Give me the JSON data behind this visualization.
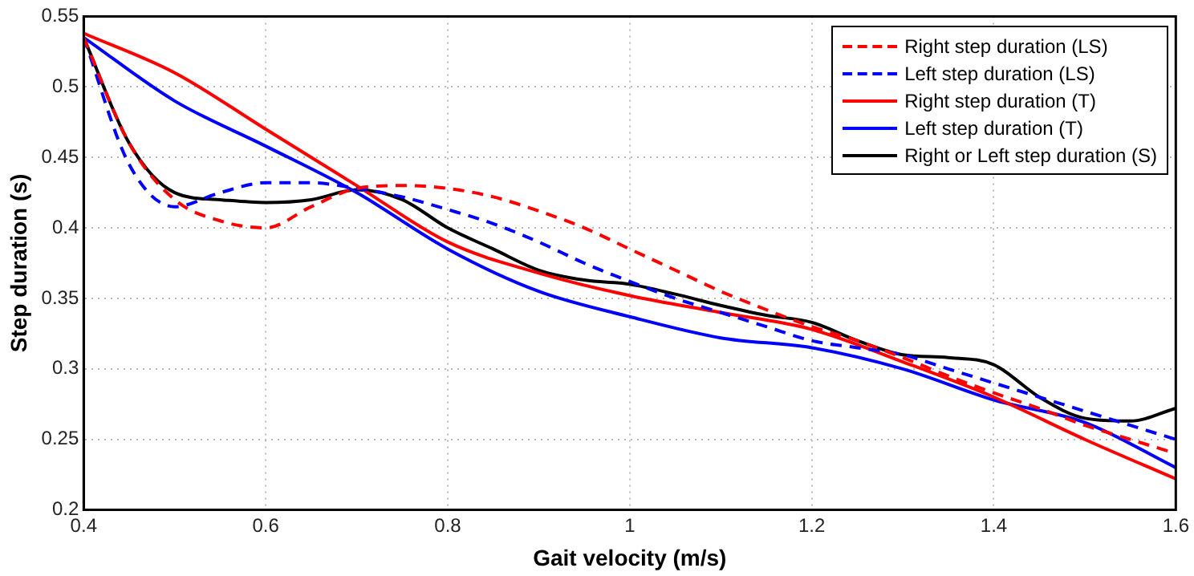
{
  "chart_data": {
    "type": "line",
    "xlabel": "Gait velocity (m/s)",
    "ylabel": "Step duration (s)",
    "xlim": [
      0.4,
      1.6
    ],
    "xticks": [
      0.4,
      0.6,
      0.8,
      1,
      1.2,
      1.4,
      1.6
    ],
    "ylim": [
      0.2,
      0.55
    ],
    "yticks": [
      0.2,
      0.25,
      0.3,
      0.35,
      0.4,
      0.45,
      0.5,
      0.55
    ],
    "grid": true,
    "legend": "top right",
    "marker": "none",
    "series": [
      {
        "name": "Right step duration (LS)",
        "color": "#ff0000",
        "line_style": "dashed",
        "x": [
          0.4,
          0.45,
          0.5,
          0.55,
          0.6,
          0.65,
          0.7,
          0.75,
          0.8,
          0.85,
          0.9,
          0.95,
          1.0,
          1.05,
          1.1,
          1.15,
          1.2,
          1.25,
          1.3,
          1.35,
          1.4,
          1.45,
          1.5,
          1.55,
          1.6
        ],
        "values": [
          0.535,
          0.46,
          0.42,
          0.405,
          0.4,
          0.415,
          0.428,
          0.43,
          0.428,
          0.422,
          0.412,
          0.4,
          0.385,
          0.37,
          0.355,
          0.342,
          0.33,
          0.32,
          0.308,
          0.295,
          0.283,
          0.272,
          0.26,
          0.25,
          0.24
        ]
      },
      {
        "name": "Left step duration (LS)",
        "color": "#0000ff",
        "line_style": "dashed",
        "x": [
          0.4,
          0.45,
          0.5,
          0.55,
          0.6,
          0.65,
          0.7,
          0.75,
          0.8,
          0.85,
          0.9,
          0.95,
          1.0,
          1.05,
          1.1,
          1.15,
          1.2,
          1.25,
          1.3,
          1.35,
          1.4,
          1.45,
          1.5,
          1.55,
          1.6
        ],
        "values": [
          0.535,
          0.445,
          0.415,
          0.425,
          0.432,
          0.432,
          0.428,
          0.422,
          0.413,
          0.403,
          0.39,
          0.375,
          0.362,
          0.35,
          0.34,
          0.33,
          0.32,
          0.315,
          0.31,
          0.3,
          0.29,
          0.28,
          0.27,
          0.26,
          0.25
        ]
      },
      {
        "name": "Right step duration (T)",
        "color": "#ff0000",
        "line_style": "solid",
        "x": [
          0.4,
          0.5,
          0.6,
          0.7,
          0.8,
          0.9,
          1.0,
          1.1,
          1.2,
          1.3,
          1.4,
          1.5,
          1.6
        ],
        "values": [
          0.538,
          0.51,
          0.47,
          0.43,
          0.39,
          0.368,
          0.352,
          0.34,
          0.328,
          0.305,
          0.28,
          0.25,
          0.222
        ]
      },
      {
        "name": "Left step duration (T)",
        "color": "#0000ff",
        "line_style": "solid",
        "x": [
          0.4,
          0.5,
          0.6,
          0.7,
          0.8,
          0.9,
          1.0,
          1.1,
          1.2,
          1.3,
          1.4,
          1.5,
          1.6
        ],
        "values": [
          0.535,
          0.49,
          0.458,
          0.425,
          0.385,
          0.355,
          0.337,
          0.322,
          0.315,
          0.3,
          0.278,
          0.262,
          0.23
        ]
      },
      {
        "name": "Right or Left step duration (S)",
        "color": "#000000",
        "line_style": "solid",
        "x": [
          0.4,
          0.45,
          0.5,
          0.55,
          0.6,
          0.65,
          0.7,
          0.75,
          0.8,
          0.85,
          0.9,
          0.95,
          1.0,
          1.05,
          1.1,
          1.15,
          1.2,
          1.25,
          1.3,
          1.35,
          1.4,
          1.45,
          1.5,
          1.55,
          1.6
        ],
        "values": [
          0.535,
          0.46,
          0.425,
          0.42,
          0.418,
          0.42,
          0.427,
          0.42,
          0.4,
          0.385,
          0.37,
          0.363,
          0.36,
          0.353,
          0.345,
          0.338,
          0.333,
          0.32,
          0.31,
          0.308,
          0.303,
          0.28,
          0.265,
          0.263,
          0.272
        ]
      }
    ]
  }
}
